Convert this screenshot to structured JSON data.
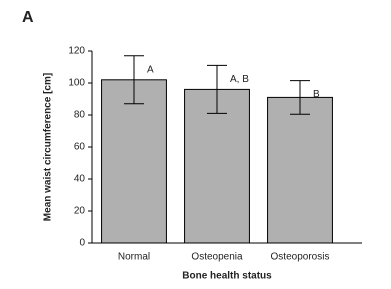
{
  "chart_data": {
    "type": "bar",
    "panel_label": "A",
    "x_label": "Bone health status",
    "y_label": "Mean waist circumference [cm]",
    "categories": [
      "Normal",
      "Osteopenia",
      "Osteoporosis"
    ],
    "values": [
      102,
      96,
      91
    ],
    "errors": [
      15,
      15,
      10.5
    ],
    "annotations": [
      "A",
      "A, B",
      "B"
    ],
    "color": "#b0b0b0",
    "ylim": [
      0,
      120
    ],
    "yticks": [
      0,
      20,
      40,
      60,
      80,
      100,
      120
    ]
  }
}
